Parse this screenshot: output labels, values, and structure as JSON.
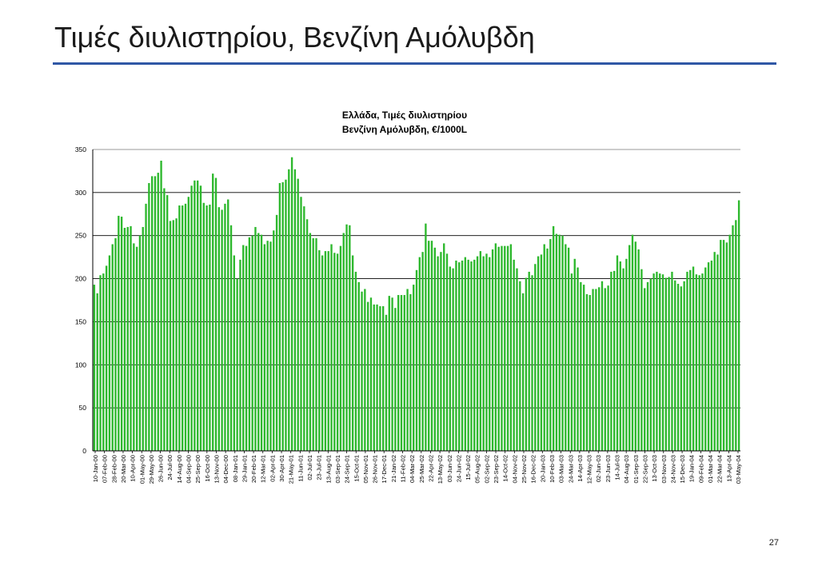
{
  "slide": {
    "title": "Τιμές διυλιστηρίου, Βενζίνη Αμόλυβδη",
    "page_number": "27"
  },
  "colors": {
    "bar": "#2db82d",
    "bar_edge": "#1f8f1f",
    "rule": "#2f57a5"
  },
  "chart_data": {
    "type": "bar",
    "title": "Ελλάδα, Τιμές διυλιστηρίου",
    "subtitle": "Βενζίνη Αμόλυβδη, €/1000L",
    "ylim": [
      0,
      350
    ],
    "yticks": [
      0,
      50,
      100,
      150,
      200,
      250,
      300,
      350
    ],
    "grid": true,
    "legend": "none",
    "x_tick_labels": [
      "10-Jan-00",
      "07-Feb-00",
      "28-Feb-00",
      "20-Mar-00",
      "10-Apr-00",
      "01-May-00",
      "29-May-00",
      "26-Jun-00",
      "24-Jul-00",
      "14-Aug-00",
      "04-Sep-00",
      "25-Sep-00",
      "16-Oct-00",
      "13-Nov-00",
      "04-Dec-00",
      "08-Jan-01",
      "29-Jan-01",
      "20-Feb-01",
      "12-Mar-01",
      "02-Apr-01",
      "30-Apr-01",
      "21-May-01",
      "11-Jun-01",
      "02-Jul-01",
      "23-Jul-01",
      "13-Aug-01",
      "03-Sep-01",
      "24-Sep-01",
      "15-Oct-01",
      "05-Nov-01",
      "26-Nov-01",
      "17-Dec-01",
      "21-Jan-02",
      "11-Feb-02",
      "04-Mar-02",
      "25-Mar-02",
      "22-Apr-02",
      "13-May-02",
      "03-Jun-02",
      "24-Jun-02",
      "15-Jul-02",
      "05-Aug-02",
      "02-Sep-02",
      "23-Sep-02",
      "14-Oct-02",
      "04-Nov-02",
      "25-Nov-02",
      "16-Dec-02",
      "20-Jan-03",
      "10-Feb-03",
      "03-Mar-03",
      "24-Mar-03",
      "14-Apr-03",
      "12-May-03",
      "02-Jun-03",
      "23-Jun-03",
      "14-Jul-03",
      "04-Aug-03",
      "01-Sep-03",
      "22-Sep-03",
      "13-Oct-03",
      "03-Nov-03",
      "24-Nov-03",
      "15-Dec-03",
      "19-Jan-04",
      "09-Feb-04",
      "01-Mar-04",
      "22-Mar-04",
      "13-Apr-04",
      "03-May-04"
    ],
    "values": [
      193,
      183,
      204,
      206,
      215,
      227,
      240,
      247,
      273,
      272,
      259,
      260,
      261,
      241,
      237,
      250,
      260,
      287,
      311,
      319,
      319,
      323,
      337,
      305,
      297,
      267,
      268,
      270,
      285,
      285,
      287,
      295,
      308,
      314,
      314,
      308,
      288,
      285,
      286,
      322,
      317,
      283,
      280,
      287,
      292,
      262,
      227,
      200,
      222,
      239,
      238,
      248,
      250,
      260,
      253,
      251,
      240,
      244,
      243,
      256,
      274,
      311,
      312,
      315,
      327,
      341,
      327,
      316,
      295,
      284,
      269,
      253,
      247,
      247,
      233,
      227,
      232,
      232,
      240,
      230,
      229,
      238,
      253,
      263,
      262,
      227,
      208,
      196,
      185,
      188,
      173,
      178,
      170,
      170,
      168,
      168,
      158,
      180,
      178,
      166,
      181,
      181,
      181,
      188,
      182,
      193,
      210,
      225,
      231,
      264,
      244,
      244,
      236,
      226,
      231,
      241,
      229,
      214,
      212,
      221,
      219,
      221,
      225,
      222,
      220,
      222,
      226,
      232,
      226,
      229,
      225,
      234,
      241,
      237,
      238,
      238,
      238,
      240,
      222,
      212,
      197,
      183,
      201,
      208,
      204,
      217,
      226,
      228,
      240,
      235,
      246,
      261,
      252,
      251,
      250,
      240,
      236,
      206,
      223,
      213,
      196,
      193,
      182,
      181,
      188,
      188,
      190,
      197,
      189,
      192,
      208,
      209,
      227,
      220,
      212,
      223,
      239,
      251,
      243,
      234,
      211,
      189,
      196,
      200,
      206,
      208,
      206,
      205,
      201,
      202,
      208,
      198,
      194,
      191,
      197,
      208,
      210,
      214,
      205,
      204,
      206,
      213,
      219,
      221,
      231,
      228,
      245,
      245,
      242,
      251,
      262,
      268,
      291
    ]
  }
}
